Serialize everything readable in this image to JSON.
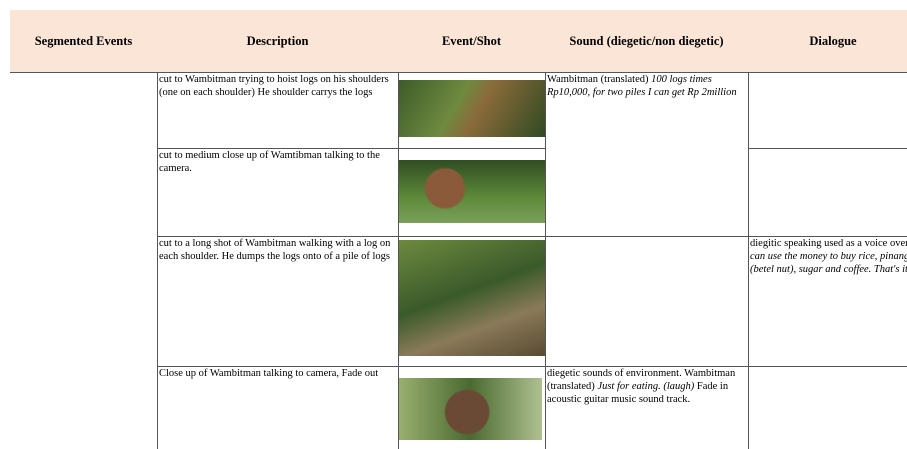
{
  "table": {
    "header": [
      "Segmented Events",
      "Description",
      "Event/Shot",
      "Sound  (diegetic/non diegetic)",
      "Dialogue"
    ],
    "rows": [
      {
        "description": "cut to Wambitman trying to hoist logs on his shoulders (one on each shoulder)   He shoulder carrys the logs",
        "sound": [
          {
            "text": "Wambitman (translated) ",
            "italic": false
          },
          {
            "text": "100 logs times Rp10,000, for two piles I can get Rp 2million",
            "italic": true
          }
        ]
      },
      {
        "description": "cut to medium close up of Wamtibman  talking to the camera."
      },
      {
        "description": "cut to a long shot of Wambitman walking with a log on each shoulder.  He dumps the logs onto of a pile of logs",
        "dialogue": [
          {
            "text": "diegitic speaking used as a voice over:  ",
            "italic": false
          },
          {
            "text": "I can use the money to buy rice, pinang (betel nut), sugar and coffee. That's it",
            "italic": true
          }
        ]
      },
      {
        "description": "Close up of Wambitman talking to camera, Fade out",
        "sound": [
          {
            "text": "diegetic sounds of environment. Wambitman (translated)  ",
            "italic": false
          },
          {
            "text": "Just for eating. (laugh)",
            "italic": true
          },
          {
            "text": "   Fade in acoustic guitar music sound track.",
            "italic": false
          }
        ]
      }
    ]
  }
}
